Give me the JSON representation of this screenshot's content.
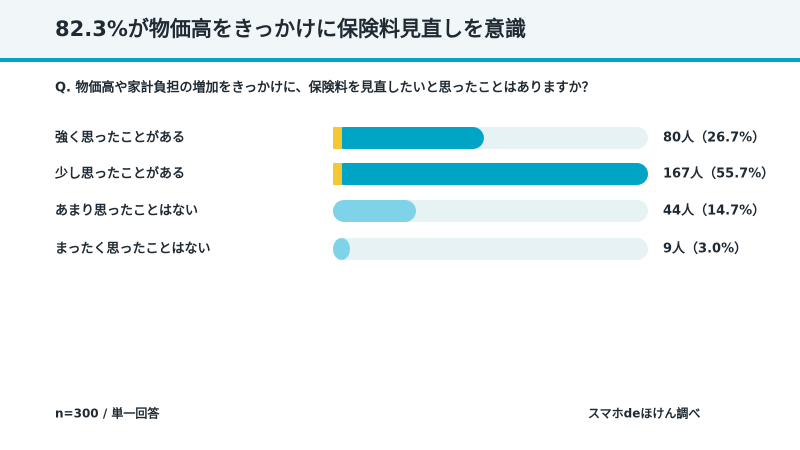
{
  "chart_data": {
    "type": "bar",
    "orientation": "horizontal",
    "title": "82.3%が物価高をきっかけに保険料見直しを意識",
    "subtitle": "Q. 物価高や家計負担の増加をきっかけに、保険料を見直したいと思ったことはありますか？",
    "categories": [
      "強く思ったことがある",
      "少し思ったことがある",
      "あまり思ったことはない",
      "まったく思ったことはない"
    ],
    "values": [
      80,
      167,
      44,
      9
    ],
    "value_labels": [
      "80人（26.7%）",
      "167人（55.7%）",
      "44人（14.7%）",
      "9人（3.0%）"
    ],
    "colors": [
      "#00a5c6",
      "#00a5c6",
      "#7fd3e8",
      "#7fd3e8"
    ],
    "accent_color": "#f5c832",
    "accented": [
      true,
      true,
      false,
      false
    ],
    "track_color": "#e7f2f5",
    "xlim": [
      0,
      167
    ],
    "note": "n=300 / 単一回答",
    "source": "スマホdeほけん調べ"
  }
}
